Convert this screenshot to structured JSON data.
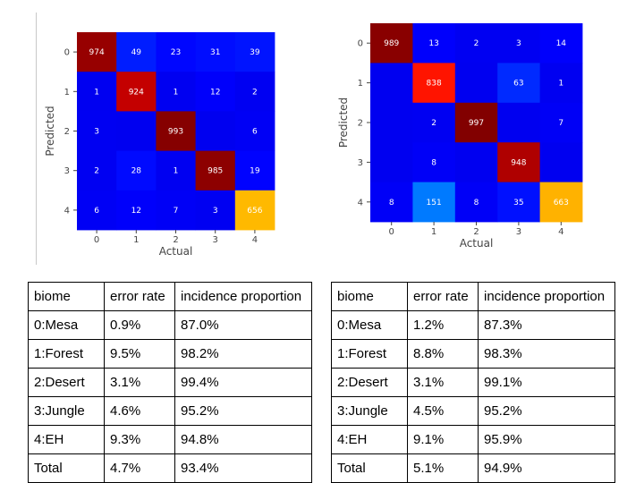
{
  "chart_data": [
    {
      "type": "heatmap",
      "xlabel": "Actual",
      "ylabel": "Predicted",
      "x_ticks": [
        "0",
        "1",
        "2",
        "3",
        "4"
      ],
      "y_ticks": [
        "0",
        "1",
        "2",
        "3",
        "4"
      ],
      "colormap": "jet",
      "color_max": 1000,
      "values": [
        [
          974,
          49,
          23,
          31,
          39
        ],
        [
          1,
          924,
          1,
          12,
          2
        ],
        [
          3,
          null,
          993,
          null,
          6
        ],
        [
          2,
          28,
          1,
          985,
          19
        ],
        [
          6,
          12,
          7,
          3,
          656
        ]
      ]
    },
    {
      "type": "heatmap",
      "xlabel": "Actual",
      "ylabel": "Predicted",
      "x_ticks": [
        "0",
        "1",
        "2",
        "3",
        "4"
      ],
      "y_ticks": [
        "0",
        "1",
        "2",
        "3",
        "4"
      ],
      "colormap": "jet",
      "color_max": 1000,
      "values": [
        [
          989,
          13,
          2,
          3,
          14
        ],
        [
          null,
          838,
          null,
          63,
          1
        ],
        [
          null,
          2,
          997,
          null,
          7
        ],
        [
          null,
          8,
          null,
          948,
          null
        ],
        [
          8,
          151,
          8,
          35,
          663
        ]
      ]
    }
  ],
  "tables": [
    {
      "headers": [
        "biome",
        "error rate",
        "incidence proportion"
      ],
      "rows": [
        [
          "0:Mesa",
          "0.9%",
          "87.0%"
        ],
        [
          "1:Forest",
          "9.5%",
          "98.2%"
        ],
        [
          "2:Desert",
          "3.1%",
          "99.4%"
        ],
        [
          "3:Jungle",
          "4.6%",
          "95.2%"
        ],
        [
          "4:EH",
          "9.3%",
          "94.8%"
        ],
        [
          "Total",
          "4.7%",
          "93.4%"
        ]
      ]
    },
    {
      "headers": [
        "biome",
        "error rate",
        "incidence proportion"
      ],
      "rows": [
        [
          "0:Mesa",
          "1.2%",
          "87.3%"
        ],
        [
          "1:Forest",
          "8.8%",
          "98.3%"
        ],
        [
          "2:Desert",
          "3.1%",
          "99.1%"
        ],
        [
          "3:Jungle",
          "4.5%",
          "95.2%"
        ],
        [
          "4:EH",
          "9.1%",
          "95.9%"
        ],
        [
          "Total",
          "5.1%",
          "94.9%"
        ]
      ]
    }
  ]
}
